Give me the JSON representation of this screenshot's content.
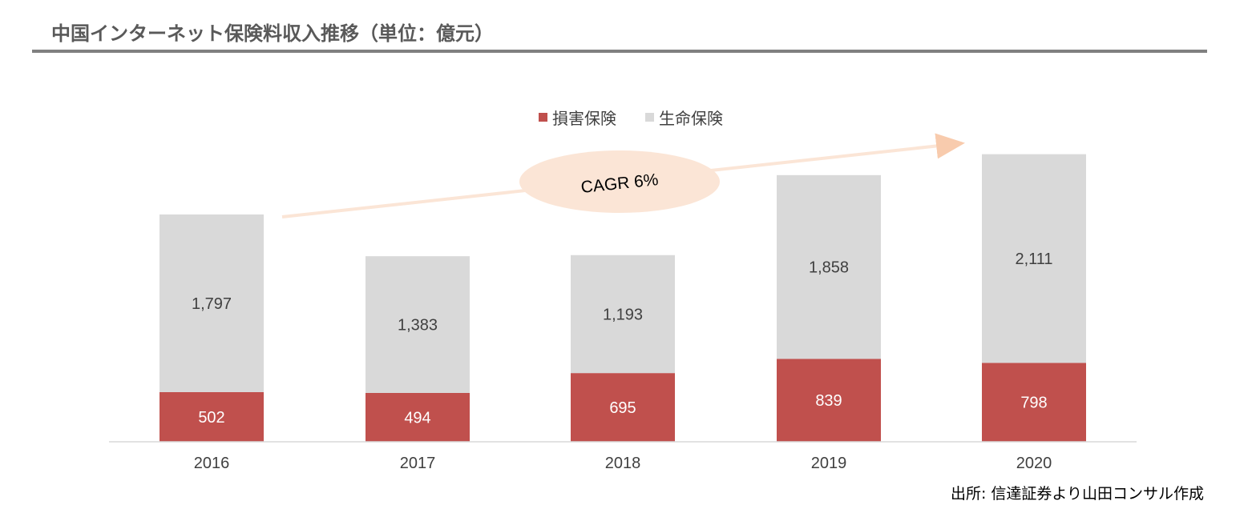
{
  "title": "中国インターネット保険料収入推移（単位：億元）",
  "legend": {
    "items": [
      {
        "label": "損害保険",
        "color": "#c0504d"
      },
      {
        "label": "生命保険",
        "color": "#d9d9d9"
      }
    ]
  },
  "annotation": {
    "text": "CAGR 6%"
  },
  "source": "出所: 信達証券より山田コンサル作成",
  "chart_data": {
    "type": "bar",
    "stacked": true,
    "categories": [
      "2016",
      "2017",
      "2018",
      "2019",
      "2020"
    ],
    "series": [
      {
        "name": "損害保険",
        "values": [
          502,
          494,
          695,
          839,
          798
        ],
        "color": "#c0504d"
      },
      {
        "name": "生命保険",
        "values": [
          1797,
          1383,
          1193,
          1858,
          2111
        ],
        "color": "#d9d9d9"
      }
    ],
    "value_labels": {
      "損害保険": [
        "502",
        "494",
        "695",
        "839",
        "798"
      ],
      "生命保険": [
        "1,797",
        "1,383",
        "1,193",
        "1,858",
        "2,111"
      ]
    },
    "legend_position": "top-center",
    "grid": false,
    "ylim": [
      0,
      2930
    ]
  }
}
